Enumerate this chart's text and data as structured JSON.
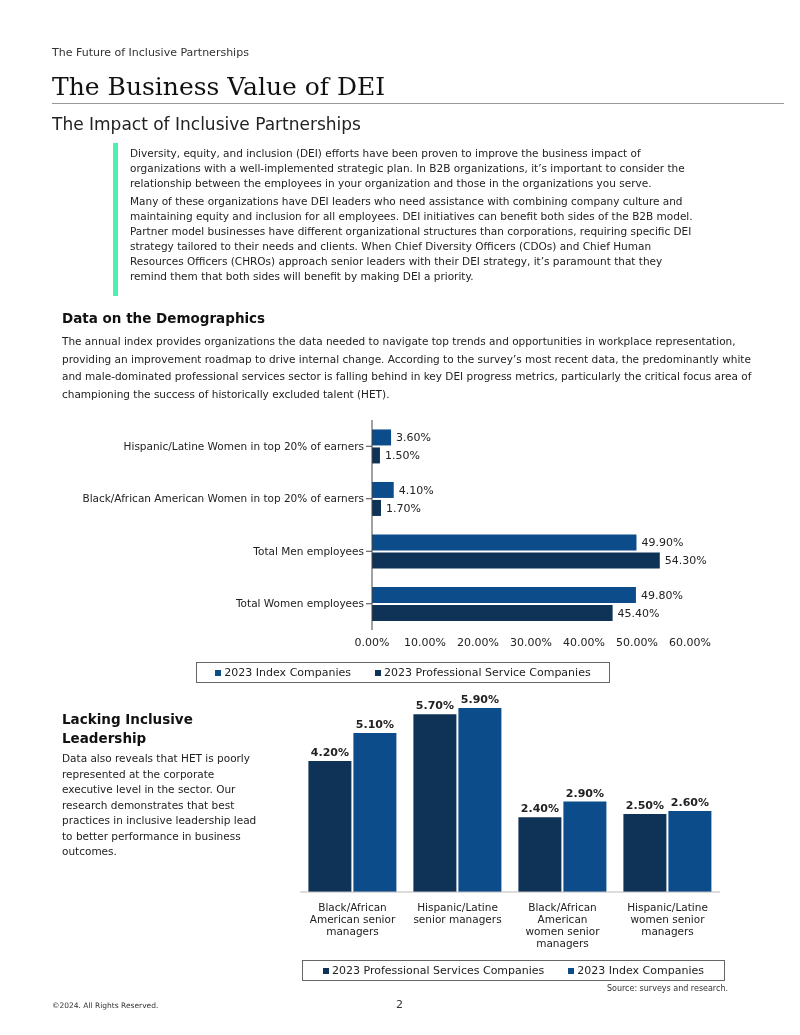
{
  "chart_data": [
    {
      "type": "bar",
      "orientation": "horizontal",
      "title": "The Business Value of DEI",
      "subtitle": "The Impact of Inclusive Partnerships",
      "annotations": [
        "The Future of Inclusive Partnerships",
        "Diversity, equity, and inclusion (DEI) efforts have been proven to improve the business impact of  organizations with a well-implemented strategic plan. In B2B organizations, it’s important to consider the relationship between the employees in your organization and those in the organizations you serve.",
        "Many of these organizations have DEI leaders who need assistance with combining company culture and maintaining equity and inclusion for all employees. DEI initiatives can benefit both sides of the B2B model. Partner model businesses have different organizational structures than corporations, requiring specific DEI strategy tailored to their needs and clients. When Chief Diversity Officers (CDOs) and Chief Human Resources Officers (CHROs) approach senior leaders with their DEI strategy, it’s paramount that they remind them that both sides will benefit by making DEI a priority.",
        "Data on the Demographics",
        "The annual index provides organizations the data needed to navigate top trends and opportunities in workplace representation, providing an improvement roadmap to drive internal change. According to the survey’s most recent data, the predominantly white and male-dominated professional services sector is falling behind in key DEI progress metrics, particularly the critical focus area of championing the success of historically excluded talent (HET)."
      ],
      "categories": [
        "Hispanic/Latine Women in top 20% of earners",
        "Black/African American Women in top 20% of earners",
        "Total Men employees",
        "Total Women employees"
      ],
      "series": [
        {
          "name": "2023 Index Companies",
          "color": "#0d4c8a",
          "values": [
            3.6,
            4.1,
            49.9,
            49.8
          ],
          "value_labels": [
            "3.60%",
            "4.10%",
            "49.90%",
            "49.80%"
          ]
        },
        {
          "name": "2023 Professional Service Companies",
          "color": "#0e3357",
          "values": [
            1.5,
            1.7,
            54.3,
            45.4
          ],
          "value_labels": [
            "1.50%",
            "1.70%",
            "54.30%",
            "45.40%"
          ]
        }
      ],
      "xlim": [
        0,
        60
      ],
      "xticks": [
        {
          "value": 0,
          "label": "0.00%"
        },
        {
          "value": 10,
          "label": "10.00%"
        },
        {
          "value": 20,
          "label": "20.00%"
        },
        {
          "value": 30,
          "label": "30.00%"
        },
        {
          "value": 40,
          "label": "40.00%"
        },
        {
          "value": 50,
          "label": "50.00%"
        },
        {
          "value": 60,
          "label": "60.00%"
        }
      ],
      "legend": "bottom"
    },
    {
      "type": "bar",
      "annotations": [
        "Lacking Inclusive Leadership",
        "Data also reveals that HET is poorly represented at the corporate executive level in the sector. Our research demonstrates that best practices in inclusive leadership lead to better performance in business outcomes.",
        "Source: surveys and research.",
        "©2024. All Rights Reserved.",
        "2"
      ],
      "categories": [
        "Black/African American senior managers",
        "Hispanic/Latine senior managers",
        "Black/African American women senior managers",
        "Hispanic/Latine women senior managers"
      ],
      "series": [
        {
          "name": "2023 Professional Services Companies",
          "color": "#0e3357",
          "values": [
            4.2,
            5.7,
            2.4,
            2.5
          ],
          "value_labels": [
            "4.20%",
            "5.70%",
            "2.40%",
            "2.50%"
          ]
        },
        {
          "name": "2023 Index Companies",
          "color": "#0d4c8a",
          "values": [
            5.1,
            5.9,
            2.9,
            2.6
          ],
          "value_labels": [
            "5.10%",
            "5.90%",
            "2.90%",
            "2.60%"
          ]
        }
      ],
      "legend": "bottom"
    }
  ]
}
